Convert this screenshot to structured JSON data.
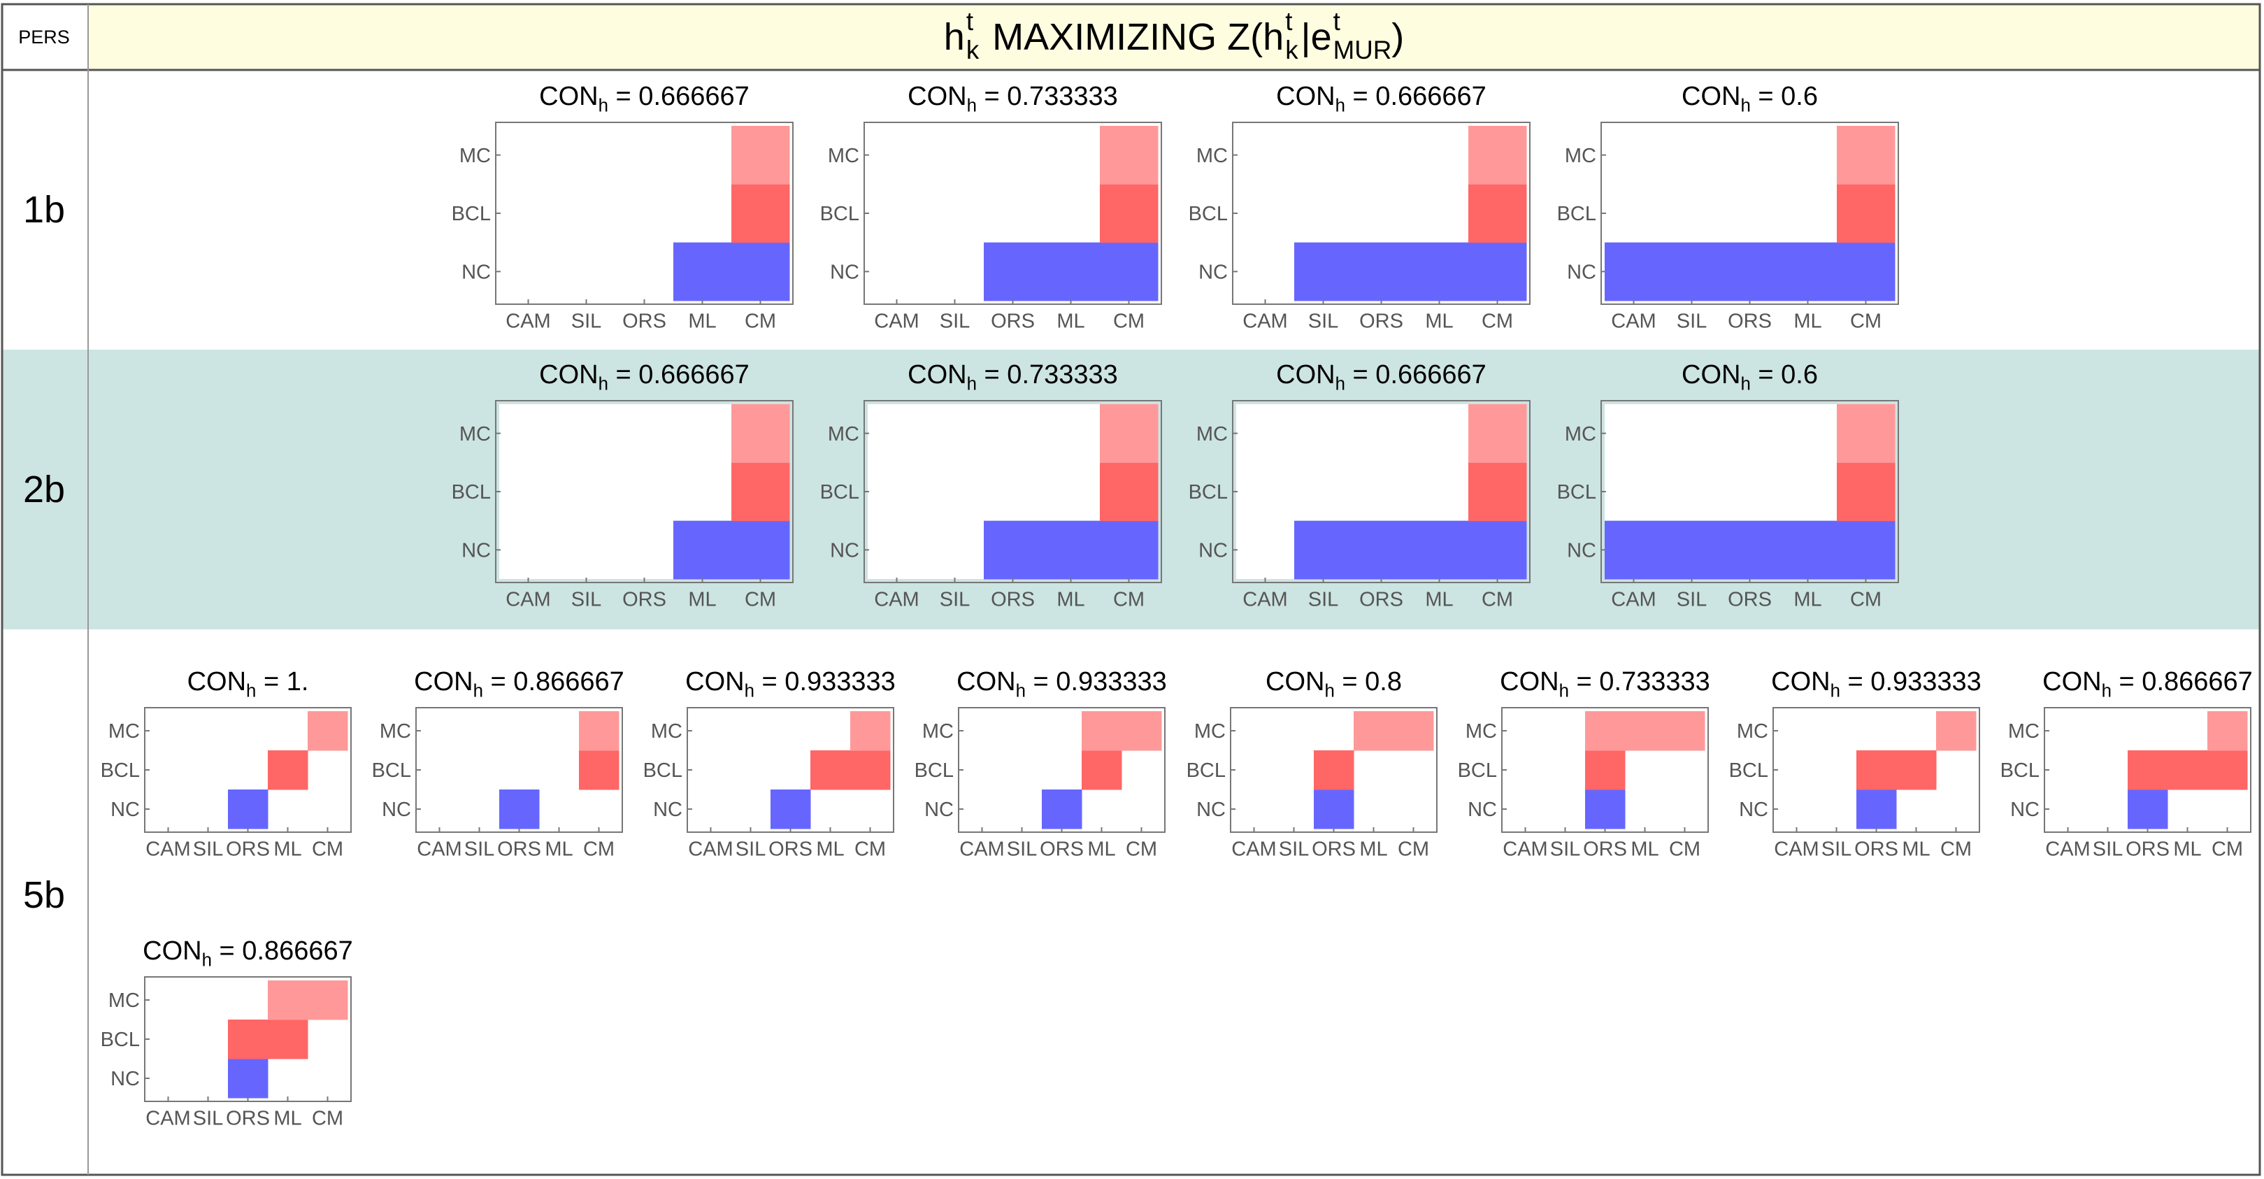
{
  "header": {
    "corner_label": "PERS",
    "title": {
      "h": "h",
      "sup_t": "t",
      "sub_k": "k",
      "mid": " MAXIMIZING Z(",
      "bar": "|e",
      "sub_mur": "MUR",
      "close": ")"
    }
  },
  "colors": {
    "header_bg": "#fffde0",
    "row_2b_bg": "#cce4e2",
    "row_bg": "#ffffff",
    "cell_nc": "#6666ff",
    "cell_bcl": "#ff6666",
    "cell_mc": "#ff9999",
    "border": "#555555",
    "grid_line": "#999999",
    "tick_text": "#555555"
  },
  "chart_data": {
    "type": "heatmap",
    "title_prefix": "CON",
    "title_subscript": "h",
    "title_equals": " = ",
    "x_categories": [
      "CAM",
      "SIL",
      "ORS",
      "ML",
      "CM"
    ],
    "y_categories": [
      "NC",
      "BCL",
      "MC"
    ],
    "rows": [
      {
        "label": "1b",
        "panels": [
          {
            "con": "0.666667",
            "cells": {
              "NC": [
                "ML",
                "CM"
              ],
              "BCL": [
                "CM"
              ],
              "MC": [
                "CM"
              ]
            }
          },
          {
            "con": "0.733333",
            "cells": {
              "NC": [
                "ORS",
                "ML",
                "CM"
              ],
              "BCL": [
                "CM"
              ],
              "MC": [
                "CM"
              ]
            }
          },
          {
            "con": "0.666667",
            "cells": {
              "NC": [
                "SIL",
                "ORS",
                "ML",
                "CM"
              ],
              "BCL": [
                "CM"
              ],
              "MC": [
                "CM"
              ]
            }
          },
          {
            "con": "0.6",
            "cells": {
              "NC": [
                "CAM",
                "SIL",
                "ORS",
                "ML",
                "CM"
              ],
              "BCL": [
                "CM"
              ],
              "MC": [
                "CM"
              ]
            }
          }
        ]
      },
      {
        "label": "2b",
        "panels": [
          {
            "con": "0.666667",
            "cells": {
              "NC": [
                "ML",
                "CM"
              ],
              "BCL": [
                "CM"
              ],
              "MC": [
                "CM"
              ]
            }
          },
          {
            "con": "0.733333",
            "cells": {
              "NC": [
                "ORS",
                "ML",
                "CM"
              ],
              "BCL": [
                "CM"
              ],
              "MC": [
                "CM"
              ]
            }
          },
          {
            "con": "0.666667",
            "cells": {
              "NC": [
                "SIL",
                "ORS",
                "ML",
                "CM"
              ],
              "BCL": [
                "CM"
              ],
              "MC": [
                "CM"
              ]
            }
          },
          {
            "con": "0.6",
            "cells": {
              "NC": [
                "CAM",
                "SIL",
                "ORS",
                "ML",
                "CM"
              ],
              "BCL": [
                "CM"
              ],
              "MC": [
                "CM"
              ]
            }
          }
        ]
      },
      {
        "label": "5b",
        "panels": [
          {
            "con": "1.",
            "cells": {
              "NC": [
                "ORS"
              ],
              "BCL": [
                "ML"
              ],
              "MC": [
                "CM"
              ]
            }
          },
          {
            "con": "0.866667",
            "cells": {
              "NC": [
                "ORS"
              ],
              "BCL": [
                "CM"
              ],
              "MC": [
                "CM"
              ]
            }
          },
          {
            "con": "0.933333",
            "cells": {
              "NC": [
                "ORS"
              ],
              "BCL": [
                "ML",
                "CM"
              ],
              "MC": [
                "CM"
              ]
            }
          },
          {
            "con": "0.933333",
            "cells": {
              "NC": [
                "ORS"
              ],
              "BCL": [
                "ML"
              ],
              "MC": [
                "ML",
                "CM"
              ]
            }
          },
          {
            "con": "0.8",
            "cells": {
              "NC": [
                "ORS"
              ],
              "BCL": [
                "ORS"
              ],
              "MC": [
                "ML",
                "CM"
              ]
            }
          },
          {
            "con": "0.733333",
            "cells": {
              "NC": [
                "ORS"
              ],
              "BCL": [
                "ORS"
              ],
              "MC": [
                "ORS",
                "ML",
                "CM"
              ]
            }
          },
          {
            "con": "0.933333",
            "cells": {
              "NC": [
                "ORS"
              ],
              "BCL": [
                "ORS",
                "ML"
              ],
              "MC": [
                "CM"
              ]
            }
          },
          {
            "con": "0.866667",
            "cells": {
              "NC": [
                "ORS"
              ],
              "BCL": [
                "ORS",
                "ML",
                "CM"
              ],
              "MC": [
                "CM"
              ]
            }
          },
          {
            "con": "0.866667",
            "cells": {
              "NC": [
                "ORS"
              ],
              "BCL": [
                "ORS",
                "ML"
              ],
              "MC": [
                "ML",
                "CM"
              ]
            }
          }
        ]
      }
    ]
  }
}
